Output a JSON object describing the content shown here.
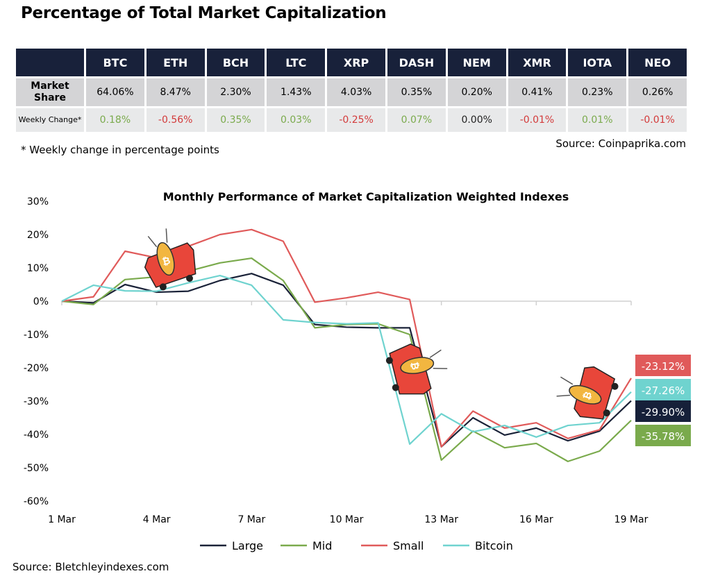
{
  "title": "Percentage of Total Market Capitalization",
  "table": {
    "columns": [
      "BTC",
      "ETH",
      "BCH",
      "LTC",
      "XRP",
      "DASH",
      "NEM",
      "XMR",
      "IOTA",
      "NEO"
    ],
    "rows": [
      {
        "label": "Market Share",
        "values": [
          "64.06%",
          "8.47%",
          "2.30%",
          "1.43%",
          "4.03%",
          "0.35%",
          "0.20%",
          "0.41%",
          "0.23%",
          "0.26%"
        ]
      },
      {
        "label": "Weekly Change*",
        "values": [
          "0.18%",
          "-0.56%",
          "0.35%",
          "0.03%",
          "-0.25%",
          "0.07%",
          "0.00%",
          "-0.01%",
          "0.01%",
          "-0.01%"
        ]
      }
    ]
  },
  "note": "* Weekly change in percentage points",
  "source_table": "Source: Coinpaprika.com",
  "source_chart": "Source: Bletchleyindexes.com",
  "colors": {
    "header": "#18213a",
    "positive": "#7aaa4c",
    "negative": "#d33a3a"
  },
  "chart_data": {
    "type": "line",
    "title": "Monthly Performance of Market Capitalization Weighted Indexes",
    "x": [
      "1 Mar",
      "2 Mar",
      "3 Mar",
      "4 Mar",
      "5 Mar",
      "6 Mar",
      "7 Mar",
      "8 Mar",
      "9 Mar",
      "10 Mar",
      "11 Mar",
      "12 Mar",
      "13 Mar",
      "14 Mar",
      "15 Mar",
      "16 Mar",
      "17 Mar",
      "18 Mar",
      "19 Mar"
    ],
    "x_tick_labels": [
      "1 Mar",
      "4 Mar",
      "7 Mar",
      "10 Mar",
      "13 Mar",
      "16 Mar",
      "19 Mar"
    ],
    "y_ticks": [
      "30%",
      "20%",
      "10%",
      "0%",
      "-10%",
      "-20%",
      "-30%",
      "-40%",
      "-50%",
      "-60%"
    ],
    "ylim": [
      -60,
      30
    ],
    "grid": false,
    "legend": "bottom",
    "series": [
      {
        "name": "Large",
        "color": "#1a2238",
        "values": [
          0,
          -0.5,
          5,
          2.7,
          3,
          6.2,
          8.3,
          4.8,
          -7,
          -7.8,
          -8,
          -8,
          -43.7,
          -35,
          -40.2,
          -38.1,
          -41.9,
          -39,
          -29.9
        ],
        "end_label": "-29.90%"
      },
      {
        "name": "Mid",
        "color": "#7aaa4c",
        "values": [
          0,
          -1,
          6.5,
          7.3,
          9,
          11.5,
          12.9,
          6.2,
          -8,
          -7,
          -6.8,
          -10,
          -47.7,
          -39,
          -44,
          -42.7,
          -48.1,
          -45,
          -35.78
        ],
        "end_label": "-35.78%"
      },
      {
        "name": "Small",
        "color": "#e05a5a",
        "values": [
          0,
          1.3,
          15,
          13,
          16.5,
          20,
          21.5,
          18,
          -0.3,
          1,
          2.7,
          0.5,
          -43.7,
          -33,
          -38.1,
          -36.5,
          -41.2,
          -38.6,
          -23.12
        ],
        "end_label": "-23.12%"
      },
      {
        "name": "Bitcoin",
        "color": "#6fd3cf",
        "values": [
          0,
          4.8,
          3.1,
          3,
          5.5,
          7.7,
          4.8,
          -5.6,
          -6.4,
          -6.8,
          -6.5,
          -42.9,
          -33.8,
          -39.2,
          -37.3,
          -40.8,
          -37.3,
          -36.5,
          -27.26
        ],
        "end_label": "-27.26%"
      }
    ]
  }
}
